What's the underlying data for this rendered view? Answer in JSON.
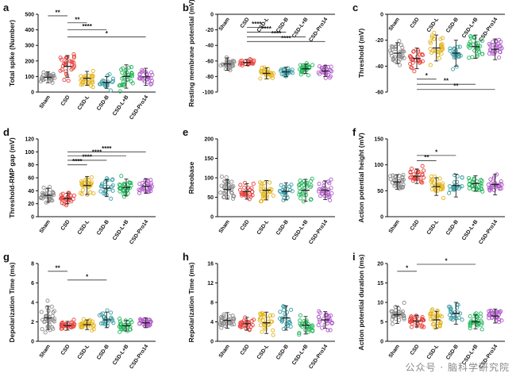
{
  "watermark": "公众号 · 脑科学研究院",
  "categories": [
    "Sham",
    "CSD",
    "CSD-L",
    "CSD-B",
    "CSD-L+B",
    "CSD-Pro14"
  ],
  "colors": [
    "#8c8c8c",
    "#e8413c",
    "#e3b41a",
    "#3a9ea5",
    "#22b55a",
    "#b05ac8"
  ],
  "chart_data": [
    {
      "panel": "a",
      "type": "scatter",
      "ylabel": "Total spike (Number)",
      "ylim": [
        0,
        500
      ],
      "yticks": [
        0,
        100,
        200,
        300,
        400,
        500
      ],
      "means": [
        95,
        165,
        88,
        62,
        100,
        98
      ],
      "spreads": [
        35,
        70,
        45,
        38,
        75,
        55
      ],
      "counts": [
        30,
        30,
        28,
        20,
        30,
        26
      ],
      "brackets": [
        {
          "from": 0,
          "to": 1,
          "y": 490,
          "label": "**"
        },
        {
          "from": 1,
          "to": 2,
          "y": 445,
          "label": "**"
        },
        {
          "from": 1,
          "to": 3,
          "y": 400,
          "label": "****"
        },
        {
          "from": 1,
          "to": 5,
          "y": 355,
          "label": "*"
        }
      ]
    },
    {
      "panel": "b",
      "type": "scatter",
      "ylabel": "Resting membrane potential (mV)",
      "ylim": [
        -100,
        0
      ],
      "yticks": [
        -100,
        -80,
        -60,
        -40,
        -20,
        0
      ],
      "means": [
        -64,
        -62,
        -76,
        -74,
        -70,
        -73
      ],
      "spreads": [
        8,
        4,
        7,
        6,
        6,
        7
      ],
      "counts": [
        30,
        24,
        26,
        22,
        28,
        26
      ],
      "brackets": [
        {
          "from": 1,
          "to": 2,
          "y": -17,
          "label": "****"
        },
        {
          "from": 1,
          "to": 3,
          "y": -23,
          "label": "****"
        },
        {
          "from": 1,
          "to": 4,
          "y": -29,
          "label": "****"
        },
        {
          "from": 1,
          "to": 5,
          "y": -35,
          "label": "****"
        }
      ]
    },
    {
      "panel": "c",
      "type": "scatter",
      "ylabel": "Threshold (mV)",
      "ylim": [
        -60,
        0
      ],
      "yticks": [
        -60,
        -40,
        -20,
        0
      ],
      "means": [
        -30,
        -34,
        -26,
        -30,
        -25,
        -27
      ],
      "spreads": [
        8,
        8,
        10,
        10,
        9,
        8
      ],
      "counts": [
        34,
        26,
        28,
        22,
        28,
        28
      ],
      "brackets": [
        {
          "from": 1,
          "to": 2,
          "y": -50,
          "label": "*"
        },
        {
          "from": 1,
          "to": 4,
          "y": -54,
          "label": "**"
        },
        {
          "from": 1,
          "to": 5,
          "y": -58,
          "label": "**"
        }
      ]
    },
    {
      "panel": "d",
      "type": "scatter",
      "ylabel": "Threshold-RMP gap (mV)",
      "ylim": [
        0,
        120
      ],
      "yticks": [
        0,
        20,
        40,
        60,
        80,
        100,
        120
      ],
      "means": [
        33,
        28,
        48,
        44,
        45,
        47
      ],
      "spreads": [
        11,
        8,
        14,
        13,
        13,
        11
      ],
      "counts": [
        30,
        26,
        28,
        22,
        28,
        28
      ],
      "brackets": [
        {
          "from": 1,
          "to": 5,
          "y": 100,
          "label": "****"
        },
        {
          "from": 1,
          "to": 4,
          "y": 94,
          "label": "****"
        },
        {
          "from": 1,
          "to": 3,
          "y": 87,
          "label": "****"
        },
        {
          "from": 1,
          "to": 2,
          "y": 80,
          "label": "****"
        }
      ]
    },
    {
      "panel": "e",
      "type": "scatter",
      "ylabel": "Rheobase",
      "ylim": [
        0,
        200
      ],
      "yticks": [
        0,
        50,
        100,
        150,
        200
      ],
      "means": [
        70,
        65,
        68,
        65,
        68,
        68
      ],
      "spreads": [
        25,
        20,
        25,
        22,
        28,
        24
      ],
      "counts": [
        34,
        26,
        28,
        22,
        28,
        28
      ],
      "brackets": []
    },
    {
      "panel": "f",
      "type": "scatter",
      "ylabel": "Action potential height (mV)",
      "ylim": [
        0,
        150
      ],
      "yticks": [
        0,
        50,
        100,
        150
      ],
      "means": [
        67,
        78,
        58,
        60,
        64,
        62
      ],
      "spreads": [
        14,
        14,
        17,
        22,
        15,
        20
      ],
      "counts": [
        32,
        26,
        28,
        22,
        28,
        28
      ],
      "brackets": [
        {
          "from": 1,
          "to": 3,
          "y": 118,
          "label": "*"
        },
        {
          "from": 1,
          "to": 2,
          "y": 108,
          "label": "**"
        }
      ]
    },
    {
      "panel": "g",
      "type": "scatter",
      "ylabel": "Depolarization Time (ms)",
      "ylim": [
        0,
        8
      ],
      "yticks": [
        0,
        2,
        4,
        6,
        8
      ],
      "means": [
        2.4,
        1.6,
        1.7,
        2.2,
        1.6,
        1.9
      ],
      "spreads": [
        1.2,
        0.45,
        0.5,
        0.8,
        0.55,
        0.5
      ],
      "counts": [
        34,
        28,
        28,
        24,
        28,
        28
      ],
      "brackets": [
        {
          "from": 0,
          "to": 1,
          "y": 7.2,
          "label": "**"
        },
        {
          "from": 1,
          "to": 3,
          "y": 6.3,
          "label": "*"
        }
      ]
    },
    {
      "panel": "h",
      "type": "scatter",
      "ylabel": "Repolarization Time (ms)",
      "ylim": [
        0,
        16
      ],
      "yticks": [
        0,
        4,
        8,
        12,
        16
      ],
      "means": [
        4.3,
        3.6,
        3.8,
        4.8,
        3.3,
        4.4
      ],
      "spreads": [
        1.6,
        1.3,
        2.2,
        2.5,
        1.8,
        1.7
      ],
      "counts": [
        32,
        28,
        26,
        24,
        28,
        28
      ],
      "brackets": []
    },
    {
      "panel": "i",
      "type": "scatter",
      "ylabel": "Action potential duration (ms)",
      "ylim": [
        0,
        20
      ],
      "yticks": [
        0,
        5,
        10,
        15,
        20
      ],
      "means": [
        6.8,
        5.2,
        5.5,
        7.2,
        5.0,
        6.5
      ],
      "spreads": [
        2.2,
        1.5,
        2.2,
        2.8,
        1.8,
        1.8
      ],
      "counts": [
        32,
        28,
        28,
        24,
        28,
        28
      ],
      "brackets": [
        {
          "from": 0,
          "to": 1,
          "y": 18,
          "label": "*"
        },
        {
          "from": 1,
          "to": 4,
          "y": 19.8,
          "label": "*"
        }
      ]
    }
  ]
}
